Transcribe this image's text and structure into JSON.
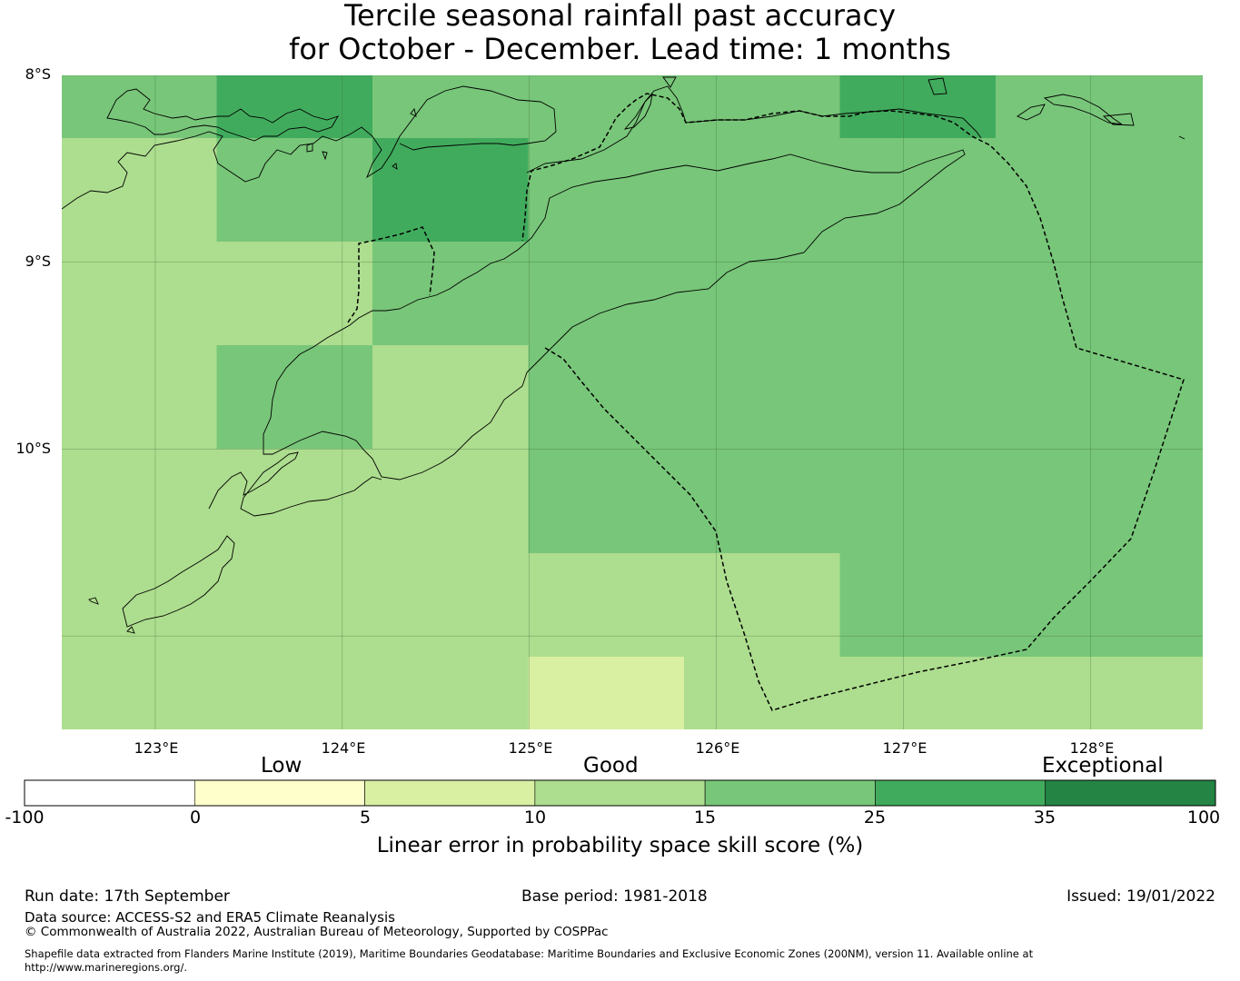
{
  "title": {
    "line1": "Tercile seasonal rainfall past accuracy",
    "line2": "for October - December. Lead time: 1 months"
  },
  "map": {
    "lat_labels": [
      "8°S",
      "9°S",
      "10°S"
    ],
    "lon_labels": [
      "123°E",
      "124°E",
      "125°E",
      "126°E",
      "127°E",
      "128°E"
    ],
    "lon_range": [
      122.5,
      128.6
    ],
    "lat_range": [
      -8.0,
      -11.5
    ],
    "grid_step_deg": 1.0,
    "cell_size_deg": 0.8333,
    "skill_grid_rows": [
      [
        "15-25",
        "25-35",
        "15-25",
        "15-25",
        "15-25",
        "25-35",
        "15-25",
        "15-25"
      ],
      [
        "10-15",
        "15-25",
        "25-35",
        "15-25",
        "15-25",
        "15-25",
        "15-25",
        "15-25"
      ],
      [
        "10-15",
        "10-15",
        "15-25",
        "15-25",
        "15-25",
        "15-25",
        "15-25",
        "15-25"
      ],
      [
        "10-15",
        "15-25",
        "10-15",
        "15-25",
        "15-25",
        "15-25",
        "15-25",
        "15-25"
      ],
      [
        "10-15",
        "10-15",
        "10-15",
        "15-25",
        "15-25",
        "15-25",
        "15-25",
        "15-25"
      ],
      [
        "10-15",
        "10-15",
        "10-15",
        "10-15",
        "10-15",
        "15-25",
        "15-25",
        "15-25"
      ],
      [
        "10-15",
        "10-15",
        "10-15",
        "5-10",
        "10-15",
        "10-15",
        "10-15",
        "10-15"
      ]
    ],
    "coastline_color": "#000000",
    "boundary_style": "dashed"
  },
  "colorbar": {
    "categories": [
      "Low",
      "Good",
      "Exceptional"
    ],
    "ticks": [
      "-100",
      "0",
      "5",
      "10",
      "15",
      "25",
      "35",
      "100"
    ],
    "bins": [
      {
        "range": "-100-0",
        "color": "#ffffff"
      },
      {
        "range": "0-5",
        "color": "#ffffcc"
      },
      {
        "range": "5-10",
        "color": "#d9f0a3"
      },
      {
        "range": "10-15",
        "color": "#addd8e"
      },
      {
        "range": "15-25",
        "color": "#78c679"
      },
      {
        "range": "25-35",
        "color": "#41ab5d"
      },
      {
        "range": "35-100",
        "color": "#238443"
      }
    ],
    "label": "Linear error in probability space skill score (%)"
  },
  "footer": {
    "run_date": "Run date: 17th September",
    "base_period": "Base period: 1981-2018",
    "issued": "Issued: 19/01/2022",
    "data_source": "Data source: ACCESS-S2 and ERA5 Climate Reanalysis",
    "copyright": "© Commonwealth of Australia 2022, Australian Bureau of Meteorology, Supported by COSPPac",
    "shapefile_line1": "Shapefile data extracted from Flanders Marine Institute (2019), Maritime Boundaries Geodatabase: Maritime Boundaries and Exclusive Economic Zones (200NM), version 11. Available online at",
    "shapefile_line2": "http://www.marineregions.org/."
  }
}
